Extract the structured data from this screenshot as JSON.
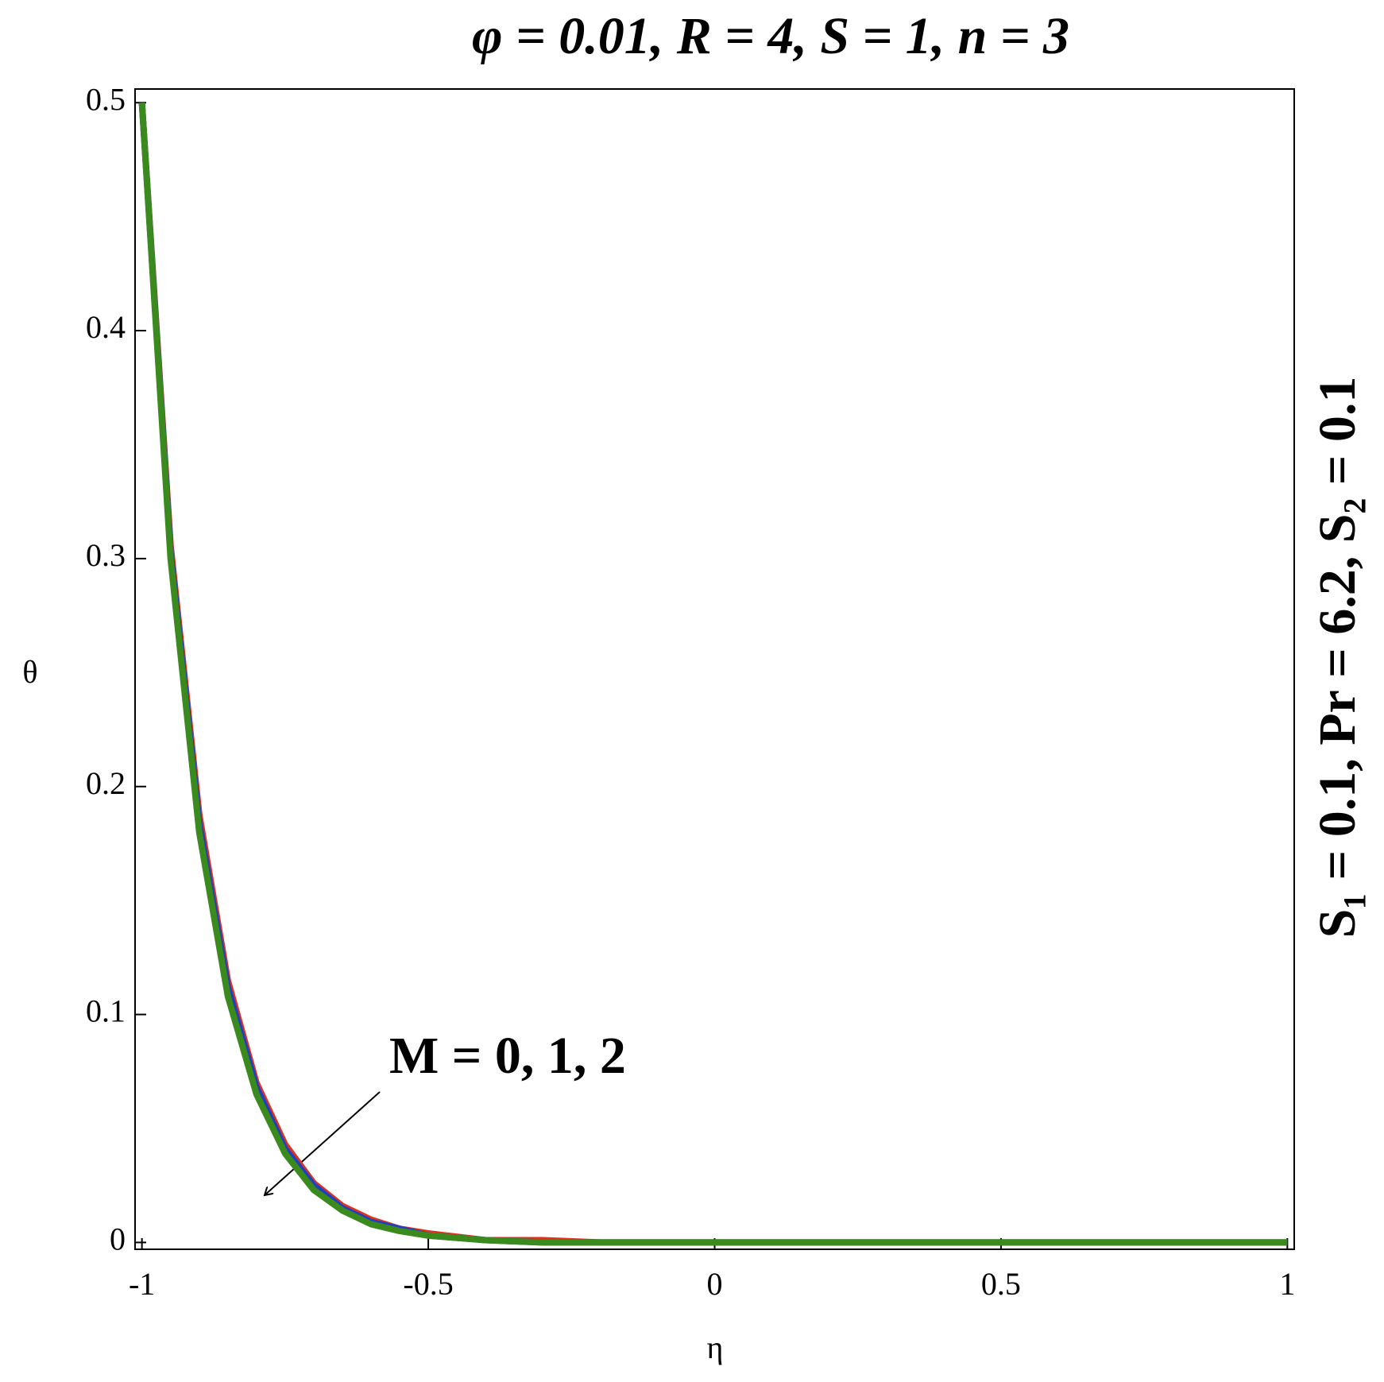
{
  "chart_data": {
    "type": "line",
    "title": "φ = 0.01, R = 4, S = 1, n = 3",
    "side_title": "S₁ = 0.1, Pr = 6.2, S₂ = 0.1",
    "annotation": "M = 0, 1, 2",
    "x_label": "η",
    "y_label": "θ",
    "x": [
      -1,
      -0.95,
      -0.9,
      -0.85,
      -0.8,
      -0.75,
      -0.7,
      -0.65,
      -0.6,
      -0.55,
      -0.5,
      -0.4,
      -0.3,
      -0.2,
      0,
      0.5,
      1
    ],
    "series": [
      {
        "color": "#e0301e",
        "values": [
          0.5,
          0.306,
          0.188,
          0.115,
          0.07,
          0.043,
          0.026,
          0.016,
          0.01,
          0.006,
          0.004,
          0.001,
          0.001,
          0,
          0,
          0,
          0
        ]
      },
      {
        "color": "#2040c0",
        "values": [
          0.5,
          0.303,
          0.184,
          0.112,
          0.068,
          0.041,
          0.025,
          0.015,
          0.009,
          0.006,
          0.003,
          0.001,
          0,
          0,
          0,
          0,
          0
        ]
      },
      {
        "color": "#3a8a1e",
        "values": [
          0.5,
          0.3,
          0.18,
          0.108,
          0.065,
          0.039,
          0.023,
          0.014,
          0.008,
          0.005,
          0.003,
          0.001,
          0,
          0,
          0,
          0,
          0
        ]
      }
    ],
    "xlim": [
      -1.012,
      1.012
    ],
    "ylim": [
      -0.003,
      0.506
    ],
    "xticks": [
      -1,
      -0.5,
      0,
      0.5,
      1
    ],
    "yticks": [
      0,
      0.1,
      0.2,
      0.3,
      0.4,
      0.5
    ]
  }
}
